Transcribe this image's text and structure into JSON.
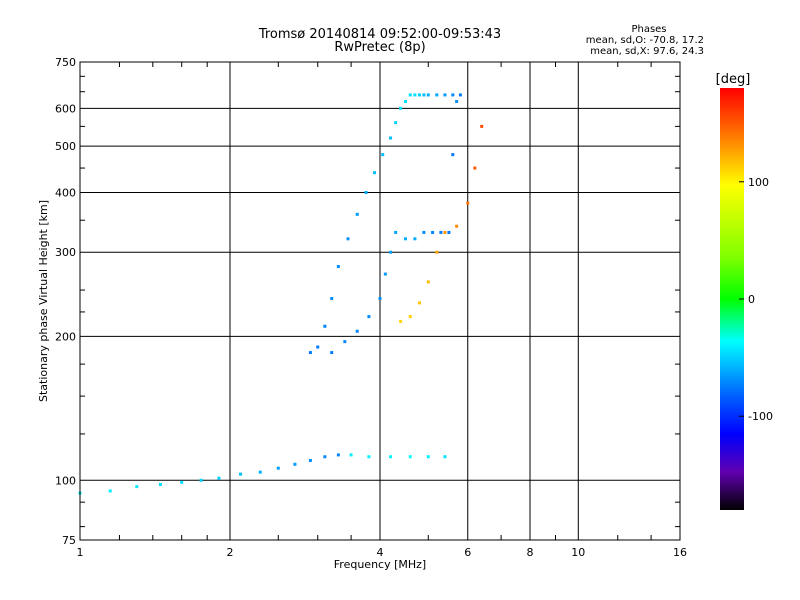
{
  "chart_data": {
    "type": "scatter",
    "title": "Tromsø 20140814 09:52:00-09:53:43",
    "subtitle": "RwPretec (8p)",
    "xlabel": "Frequency [MHz]",
    "ylabel": "Stationary phase Virtual Height [km]",
    "x_scale": "log",
    "y_scale": "log",
    "xlim": [
      1,
      16
    ],
    "ylim": [
      75,
      750
    ],
    "x_ticks": [
      1,
      2,
      4,
      6,
      8,
      10,
      16
    ],
    "x_tick_labels": [
      "1",
      "2",
      "4",
      "6",
      "8",
      "10",
      "16"
    ],
    "y_ticks": [
      75,
      100,
      200,
      300,
      400,
      500,
      600,
      750
    ],
    "y_tick_labels": [
      "75",
      "100",
      "200",
      "300",
      "400",
      "500",
      "600",
      "750"
    ],
    "grid": true,
    "stats": {
      "heading": "Phases",
      "line_o": "mean, sd,O: -70.8, 17.2",
      "line_x": "mean, sd,X:  97.6, 24.3"
    },
    "colorbar": {
      "label": "[deg]",
      "range": [
        -180,
        180
      ],
      "ticks": [
        100,
        0,
        -100
      ],
      "tick_labels": [
        "100",
        "0",
        "-100"
      ]
    },
    "series": [
      {
        "x": [
          1.0,
          1.15,
          1.3,
          1.45,
          1.6,
          1.75,
          1.9,
          2.1,
          2.3,
          2.5,
          2.7,
          2.9,
          3.1,
          3.3,
          3.5,
          3.8,
          4.2,
          4.6,
          5.0,
          5.4
        ],
        "y": [
          94,
          95,
          97,
          98,
          99,
          100,
          101,
          103,
          104,
          106,
          108,
          110,
          112,
          113,
          113,
          112,
          112,
          112,
          112,
          112
        ],
        "phase": [
          -40,
          -40,
          -42,
          -45,
          -45,
          -48,
          -50,
          -55,
          -60,
          -65,
          -65,
          -68,
          -70,
          -72,
          -40,
          -40,
          -40,
          -35,
          -40,
          -45
        ]
      },
      {
        "x": [
          2.9,
          3.0,
          3.1,
          3.2,
          3.3,
          3.45,
          3.6,
          3.75,
          3.9,
          4.05,
          4.2,
          4.3,
          4.4,
          4.5,
          4.6,
          4.7,
          4.8,
          4.9,
          5.0,
          5.2,
          5.4,
          5.6,
          5.8
        ],
        "y": [
          185,
          190,
          210,
          240,
          280,
          320,
          360,
          400,
          440,
          480,
          520,
          560,
          600,
          620,
          640,
          640,
          640,
          640,
          640,
          640,
          640,
          640,
          640
        ],
        "phase": [
          -75,
          -75,
          -72,
          -70,
          -70,
          -68,
          -65,
          -60,
          -55,
          -55,
          -55,
          -50,
          -45,
          -45,
          -45,
          -45,
          -50,
          -55,
          -60,
          -62,
          -65,
          -70,
          -75
        ]
      },
      {
        "x": [
          3.2,
          3.4,
          3.6,
          3.8,
          4.0,
          4.1,
          4.2,
          4.3,
          4.5,
          4.7,
          4.9,
          5.1,
          5.3,
          5.5,
          5.6,
          5.7
        ],
        "y": [
          185,
          195,
          205,
          220,
          240,
          270,
          300,
          330,
          320,
          320,
          330,
          330,
          330,
          330,
          480,
          620
        ],
        "phase": [
          -75,
          -72,
          -72,
          -70,
          -68,
          -66,
          -65,
          -63,
          -60,
          -60,
          -70,
          -72,
          -74,
          -76,
          -75,
          -70
        ]
      },
      {
        "x": [
          4.4,
          4.6,
          4.8,
          5.0,
          5.2,
          5.4,
          5.7,
          6.0,
          6.2,
          6.4
        ],
        "y": [
          215,
          220,
          235,
          260,
          300,
          330,
          340,
          380,
          450,
          550
        ],
        "phase": [
          110,
          112,
          115,
          118,
          125,
          130,
          135,
          140,
          150,
          155
        ]
      }
    ]
  }
}
